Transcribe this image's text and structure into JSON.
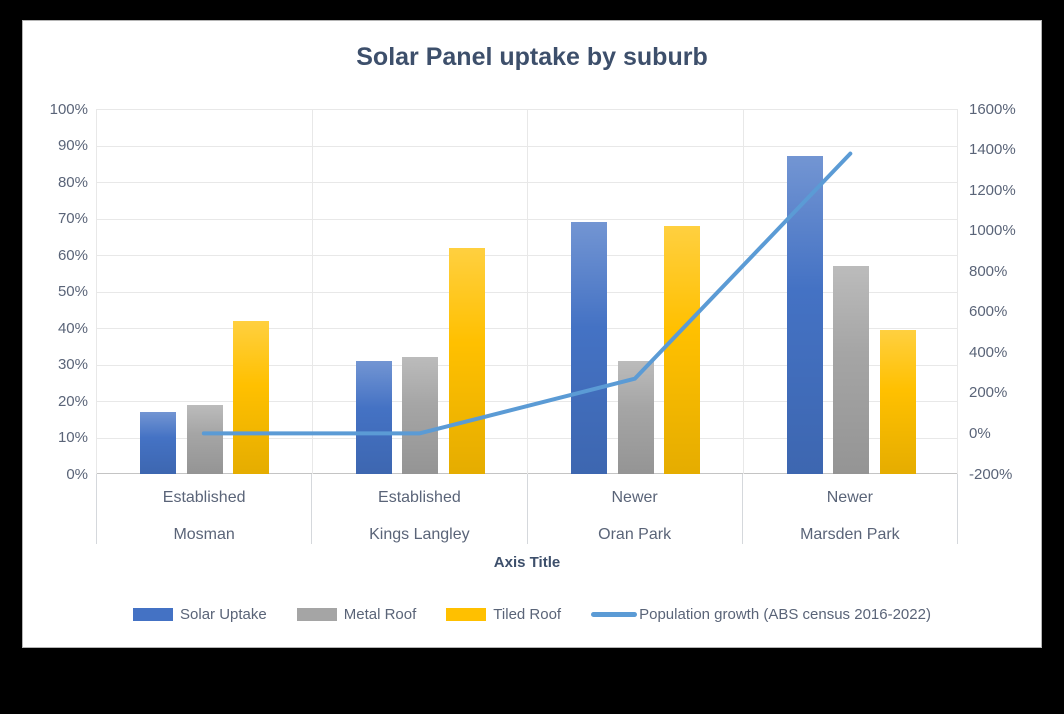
{
  "colors": {
    "background": "#000000",
    "panel": "#FFFFFF",
    "title_text": "#3D4F6B",
    "axis_text": "#5A6478",
    "gridline": "#E8E8E8",
    "axis_line": "#C4C4C4"
  },
  "chart_data": {
    "type": "bar",
    "subtype": "combo-clustered-bar-with-line",
    "title": "Solar Panel uptake by suburb",
    "x_axis_title": "Axis Title",
    "grid": true,
    "legend_position": "bottom",
    "categories": [
      {
        "group": "Established",
        "suburb": "Mosman"
      },
      {
        "group": "Established",
        "suburb": "Kings Langley"
      },
      {
        "group": "Newer",
        "suburb": "Oran Park"
      },
      {
        "group": "Newer",
        "suburb": "Marsden Park"
      }
    ],
    "bar_series": [
      {
        "name": "Solar Uptake",
        "color": "#4472C4",
        "axis": "left",
        "values": [
          17,
          31,
          69,
          87
        ]
      },
      {
        "name": "Metal Roof",
        "color": "#A5A5A5",
        "axis": "left",
        "values": [
          19,
          32,
          31,
          57
        ]
      },
      {
        "name": "Tiled Roof",
        "color": "#FFC000",
        "axis": "left",
        "values": [
          42,
          62,
          68,
          39.5
        ]
      }
    ],
    "line_series": {
      "name": "Population growth (ABS census 2016-2022)",
      "color": "#5B9BD5",
      "axis": "right",
      "values": [
        0,
        0,
        270,
        1380
      ]
    },
    "left_axis": {
      "min": 0,
      "max": 100,
      "step": 10,
      "tick_labels": [
        "100%",
        "90%",
        "80%",
        "70%",
        "60%",
        "50%",
        "40%",
        "30%",
        "20%",
        "10%",
        "0%"
      ]
    },
    "right_axis": {
      "min": -200,
      "max": 1600,
      "step": 200,
      "tick_labels": [
        "1600%",
        "1400%",
        "1200%",
        "1000%",
        "800%",
        "600%",
        "400%",
        "200%",
        "0%",
        "-200%"
      ]
    }
  }
}
